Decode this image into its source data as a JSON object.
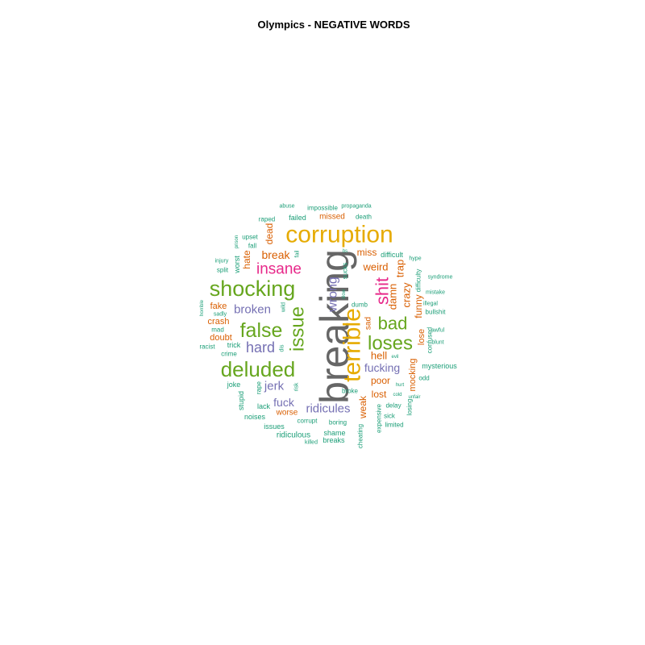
{
  "chart_data": {
    "type": "wordcloud",
    "title": "Olympics - NEGATIVE WORDS",
    "colors": {
      "c1": "#666666",
      "c2": "#E6AB02",
      "c3": "#66A61E",
      "c4": "#E7298A",
      "c5": "#7570B3",
      "c6": "#D95F02",
      "c7": "#1B9E77"
    },
    "words": [
      {
        "word": "breaking",
        "color": "c1",
        "rotated": true
      },
      {
        "word": "corruption",
        "color": "c2",
        "rotated": false
      },
      {
        "word": "terrible",
        "color": "c2",
        "rotated": true
      },
      {
        "word": "shocking",
        "color": "c3",
        "rotated": false
      },
      {
        "word": "deluded",
        "color": "c3",
        "rotated": false
      },
      {
        "word": "false",
        "color": "c3",
        "rotated": false
      },
      {
        "word": "issue",
        "color": "c3",
        "rotated": true
      },
      {
        "word": "loses",
        "color": "c3",
        "rotated": false
      },
      {
        "word": "bad",
        "color": "c3",
        "rotated": false
      },
      {
        "word": "insane",
        "color": "c4",
        "rotated": false
      },
      {
        "word": "shit",
        "color": "c4",
        "rotated": true
      },
      {
        "word": "hard",
        "color": "c5",
        "rotated": false
      },
      {
        "word": "broken",
        "color": "c5",
        "rotated": false
      },
      {
        "word": "wrong",
        "color": "c5",
        "rotated": true
      },
      {
        "word": "ridicules",
        "color": "c5",
        "rotated": false
      },
      {
        "word": "jerk",
        "color": "c5",
        "rotated": false
      },
      {
        "word": "fuck",
        "color": "c5",
        "rotated": false
      },
      {
        "word": "fucking",
        "color": "c5",
        "rotated": false
      },
      {
        "word": "break",
        "color": "c6",
        "rotated": false
      },
      {
        "word": "damn",
        "color": "c6",
        "rotated": true
      },
      {
        "word": "crazy",
        "color": "c6",
        "rotated": true
      },
      {
        "word": "hell",
        "color": "c6",
        "rotated": false
      },
      {
        "word": "weird",
        "color": "c6",
        "rotated": false
      },
      {
        "word": "trap",
        "color": "c6",
        "rotated": true
      },
      {
        "word": "miss",
        "color": "c6",
        "rotated": false
      },
      {
        "word": "funny",
        "color": "c6",
        "rotated": true
      },
      {
        "word": "lost",
        "color": "c6",
        "rotated": false
      },
      {
        "word": "weak",
        "color": "c6",
        "rotated": true
      },
      {
        "word": "poor",
        "color": "c6",
        "rotated": false
      },
      {
        "word": "dead",
        "color": "c6",
        "rotated": true
      },
      {
        "word": "hate",
        "color": "c6",
        "rotated": true
      },
      {
        "word": "fake",
        "color": "c6",
        "rotated": false
      },
      {
        "word": "crash",
        "color": "c6",
        "rotated": false
      },
      {
        "word": "doubt",
        "color": "c6",
        "rotated": false
      },
      {
        "word": "mocking",
        "color": "c6",
        "rotated": true
      },
      {
        "word": "lose",
        "color": "c6",
        "rotated": true
      },
      {
        "word": "sad",
        "color": "c6",
        "rotated": true
      },
      {
        "word": "worse",
        "color": "c6",
        "rotated": false
      },
      {
        "word": "missed",
        "color": "c6",
        "rotated": false
      },
      {
        "word": "abuse",
        "color": "c7",
        "rotated": false
      },
      {
        "word": "impossible",
        "color": "c7",
        "rotated": false
      },
      {
        "word": "propaganda",
        "color": "c7",
        "rotated": false
      },
      {
        "word": "raped",
        "color": "c7",
        "rotated": false
      },
      {
        "word": "failed",
        "color": "c7",
        "rotated": false
      },
      {
        "word": "death",
        "color": "c7",
        "rotated": false
      },
      {
        "word": "upset",
        "color": "c7",
        "rotated": false
      },
      {
        "word": "prison",
        "color": "c7",
        "rotated": true
      },
      {
        "word": "fall",
        "color": "c7",
        "rotated": false
      },
      {
        "word": "fail",
        "color": "c7",
        "rotated": true
      },
      {
        "word": "injury",
        "color": "c7",
        "rotated": false
      },
      {
        "word": "worst",
        "color": "c7",
        "rotated": true
      },
      {
        "word": "split",
        "color": "c7",
        "rotated": false
      },
      {
        "word": "horrible",
        "color": "c7",
        "rotated": true
      },
      {
        "word": "sadly",
        "color": "c7",
        "rotated": false
      },
      {
        "word": "mad",
        "color": "c7",
        "rotated": false
      },
      {
        "word": "racist",
        "color": "c7",
        "rotated": false
      },
      {
        "word": "trick",
        "color": "c7",
        "rotated": false
      },
      {
        "word": "crime",
        "color": "c7",
        "rotated": false
      },
      {
        "word": "joke",
        "color": "c7",
        "rotated": false
      },
      {
        "word": "stupid",
        "color": "c7",
        "rotated": true
      },
      {
        "word": "rape",
        "color": "c7",
        "rotated": true
      },
      {
        "word": "lack",
        "color": "c7",
        "rotated": false
      },
      {
        "word": "noises",
        "color": "c7",
        "rotated": false
      },
      {
        "word": "issues",
        "color": "c7",
        "rotated": false
      },
      {
        "word": "ridiculous",
        "color": "c7",
        "rotated": false
      },
      {
        "word": "risk",
        "color": "c7",
        "rotated": true
      },
      {
        "word": "wild",
        "color": "c7",
        "rotated": true
      },
      {
        "word": "dis",
        "color": "c7",
        "rotated": true
      },
      {
        "word": "corrupt",
        "color": "c7",
        "rotated": false
      },
      {
        "word": "boring",
        "color": "c7",
        "rotated": false
      },
      {
        "word": "shame",
        "color": "c7",
        "rotated": false
      },
      {
        "word": "breaks",
        "color": "c7",
        "rotated": false
      },
      {
        "word": "killed",
        "color": "c7",
        "rotated": false
      },
      {
        "word": "cheating",
        "color": "c7",
        "rotated": true
      },
      {
        "word": "broke",
        "color": "c7",
        "rotated": false
      },
      {
        "word": "bs",
        "color": "c7",
        "rotated": false
      },
      {
        "word": "sucks",
        "color": "c7",
        "rotated": true
      },
      {
        "word": "slow",
        "color": "c7",
        "rotated": true
      },
      {
        "word": "dumb",
        "color": "c7",
        "rotated": false
      },
      {
        "word": "difficult",
        "color": "c7",
        "rotated": false
      },
      {
        "word": "hype",
        "color": "c7",
        "rotated": false
      },
      {
        "word": "difficulty",
        "color": "c7",
        "rotated": true
      },
      {
        "word": "syndrome",
        "color": "c7",
        "rotated": false
      },
      {
        "word": "mistake",
        "color": "c7",
        "rotated": false
      },
      {
        "word": "illegal",
        "color": "c7",
        "rotated": false
      },
      {
        "word": "bullshit",
        "color": "c7",
        "rotated": false
      },
      {
        "word": "awful",
        "color": "c7",
        "rotated": false
      },
      {
        "word": "confused",
        "color": "c7",
        "rotated": true
      },
      {
        "word": "blunt",
        "color": "c7",
        "rotated": false
      },
      {
        "word": "mysterious",
        "color": "c7",
        "rotated": false
      },
      {
        "word": "odd",
        "color": "c7",
        "rotated": false
      },
      {
        "word": "evil",
        "color": "c7",
        "rotated": false
      },
      {
        "word": "hurt",
        "color": "c7",
        "rotated": false
      },
      {
        "word": "cold",
        "color": "c7",
        "rotated": false
      },
      {
        "word": "unfair",
        "color": "c7",
        "rotated": false
      },
      {
        "word": "delay",
        "color": "c7",
        "rotated": false
      },
      {
        "word": "losing",
        "color": "c7",
        "rotated": true
      },
      {
        "word": "sick",
        "color": "c7",
        "rotated": false
      },
      {
        "word": "expensive",
        "color": "c7",
        "rotated": true
      },
      {
        "word": "limited",
        "color": "c7",
        "rotated": false
      }
    ]
  }
}
